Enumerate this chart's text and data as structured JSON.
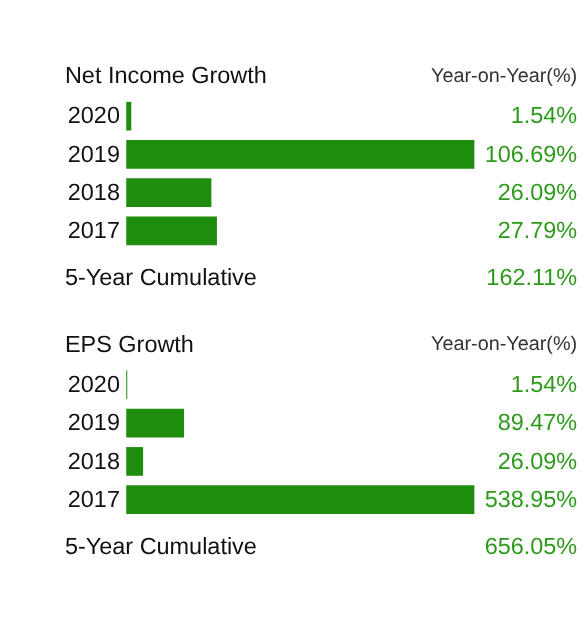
{
  "chart_data": [
    {
      "type": "bar",
      "orientation": "horizontal",
      "title": "Net Income Growth",
      "categories": [
        "2020",
        "2019",
        "2018",
        "2017"
      ],
      "values": [
        1.54,
        106.69,
        26.09,
        27.79
      ],
      "color": "#1e8c0c",
      "value_labels": [
        "1.54%",
        "106.69%",
        "26.09%",
        "27.79%"
      ],
      "annotations": [
        "Year-on-Year(%)",
        "5-Year Cumulative",
        "162.11%"
      ]
    },
    {
      "type": "bar",
      "orientation": "horizontal",
      "title": "EPS Growth",
      "categories": [
        "2020",
        "2019",
        "2018",
        "2017"
      ],
      "values": [
        1.54,
        89.47,
        26.09,
        538.95
      ],
      "color": "#1e8c0c",
      "value_labels": [
        "1.54%",
        "89.47%",
        "26.09%",
        "538.95%"
      ],
      "annotations": [
        "Year-on-Year(%)",
        "5-Year Cumulative",
        "656.05%"
      ]
    }
  ]
}
